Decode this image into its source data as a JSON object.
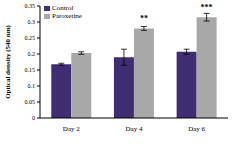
{
  "chart_data": {
    "type": "bar",
    "categories": [
      "Day 2",
      "Day 4",
      "Day 6"
    ],
    "y_label": "Optical density (540 nm)",
    "ylim": [
      0,
      0.35
    ],
    "yticks": [
      0,
      0.05,
      0.1,
      0.15,
      0.2,
      0.25,
      0.3,
      0.35
    ],
    "legend": "upper left",
    "series": [
      {
        "name": "Control",
        "color": "#3f2d72",
        "values": [
          0.168,
          0.19,
          0.207
        ],
        "errors": [
          0.003,
          0.025,
          0.008
        ],
        "annotations": [
          null,
          null,
          null
        ]
      },
      {
        "name": "Paroxetine",
        "color": "#a8a8a8",
        "values": [
          0.203,
          0.28,
          0.315
        ],
        "errors": [
          0.004,
          0.006,
          0.012
        ],
        "annotations": [
          null,
          "**",
          "***"
        ]
      }
    ]
  }
}
